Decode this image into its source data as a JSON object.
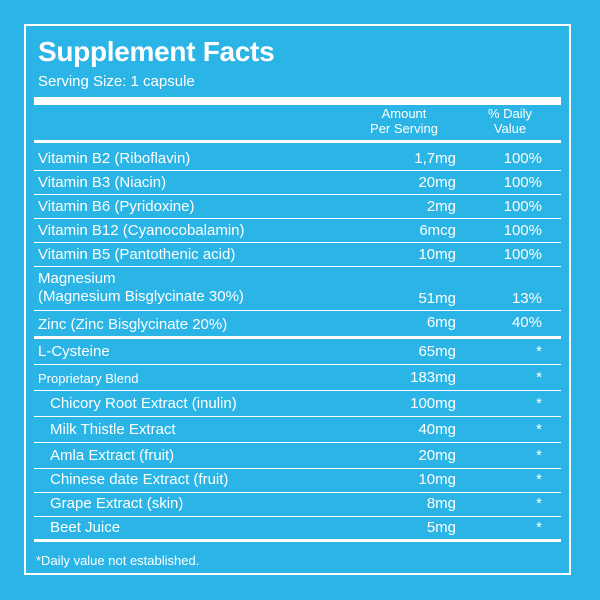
{
  "title": "Supplement Facts",
  "serving_size": "Serving Size: 1 capsule",
  "headers": {
    "amount": "Amount\nPer Serving",
    "daily_value": "% Daily\nValue"
  },
  "vitamins": [
    {
      "name": "Vitamin B2 (Riboflavin)",
      "amount": "1,7mg",
      "dv": "100%"
    },
    {
      "name": "Vitamin B3 (Niacin)",
      "amount": "20mg",
      "dv": "100%"
    },
    {
      "name": "Vitamin B6 (Pyridoxine)",
      "amount": "2mg",
      "dv": "100%"
    },
    {
      "name": "Vitamin B12 (Cyanocobalamin)",
      "amount": "6mcg",
      "dv": "100%"
    },
    {
      "name": "Vitamin B5 (Pantothenic acid)",
      "amount": "10mg",
      "dv": "100%"
    }
  ],
  "minerals": [
    {
      "name": "Magnesium\n(Magnesium Bisglycinate 30%)",
      "amount": "51mg",
      "dv": "13%"
    },
    {
      "name": "Zinc (Zinc Bisglycinate 20%)",
      "amount": "6mg",
      "dv": "40%"
    }
  ],
  "cysteine": {
    "name": "L-Cysteine",
    "amount": "65mg",
    "dv": "*"
  },
  "blend": {
    "name": "Proprietary Blend",
    "amount": "183mg",
    "dv": "*"
  },
  "blend_items": [
    {
      "name": "Chicory Root Extract (inulin)",
      "amount": "100mg",
      "dv": "*"
    },
    {
      "name": "Milk Thistle Extract",
      "amount": "40mg",
      "dv": "*"
    },
    {
      "name": "Amla Extract (fruit)",
      "amount": "20mg",
      "dv": "*"
    },
    {
      "name": "Chinese date Extract (fruit)",
      "amount": "10mg",
      "dv": "*"
    },
    {
      "name": "Grape Extract (skin)",
      "amount": "8mg",
      "dv": "*"
    },
    {
      "name": "Beet Juice",
      "amount": "5mg",
      "dv": "*"
    }
  ],
  "footnote": "*Daily value not established.",
  "colors": {
    "background": "#2ab5e6",
    "text": "#ffffff"
  }
}
